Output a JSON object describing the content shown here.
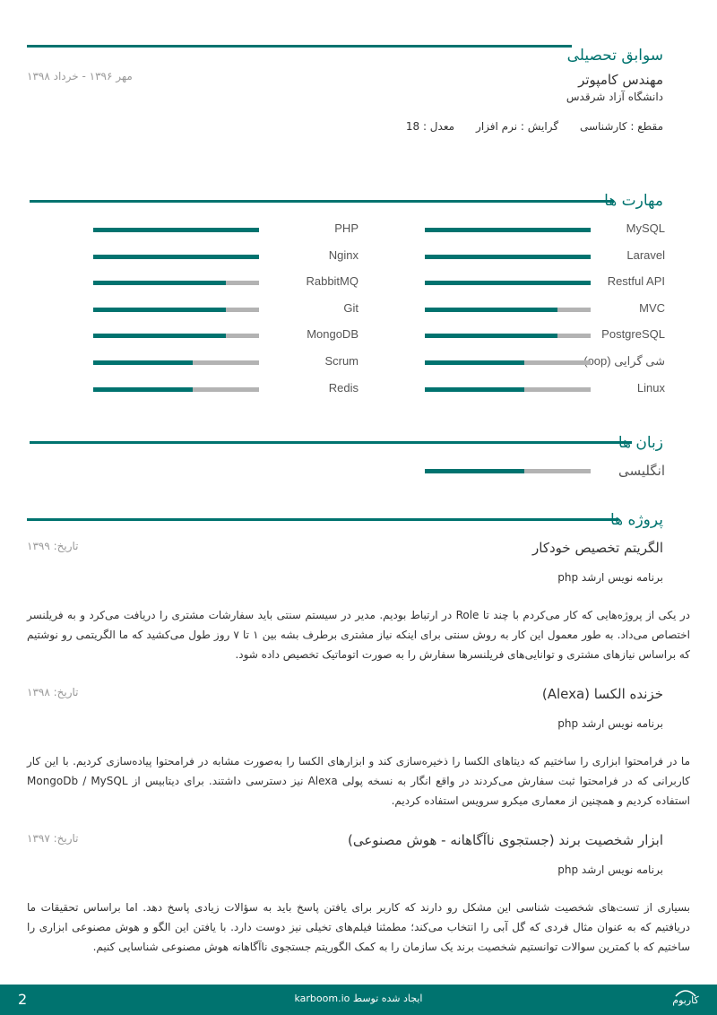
{
  "education": {
    "title": "سوابق تحصیلی",
    "degree_title": "مهندس کامپوتر",
    "university": "دانشگاه آزاد شرقدس",
    "date": "مهر ۱۳۹۶ - خرداد ۱۳۹۸",
    "level": "مقطع : کارشناسی",
    "major": "گرایش : نرم افزار",
    "gpa": "معدل : 18"
  },
  "skills": {
    "title": "مهارت ها",
    "right": [
      {
        "name": "MySQL",
        "level": 100
      },
      {
        "name": "Laravel",
        "level": 100
      },
      {
        "name": "Restful API",
        "level": 100
      },
      {
        "name": "MVC",
        "level": 80
      },
      {
        "name": "PostgreSQL",
        "level": 80
      },
      {
        "name": "شی گرایی (oop)",
        "level": 60
      },
      {
        "name": "Linux",
        "level": 60
      }
    ],
    "left": [
      {
        "name": "PHP",
        "level": 100
      },
      {
        "name": "Nginx",
        "level": 100
      },
      {
        "name": "RabbitMQ",
        "level": 80
      },
      {
        "name": "Git",
        "level": 80
      },
      {
        "name": "MongoDB",
        "level": 80
      },
      {
        "name": "Scrum",
        "level": 60
      },
      {
        "name": "Redis",
        "level": 60
      }
    ]
  },
  "languages": {
    "title": "زبان ها",
    "items": [
      {
        "name": "انگلیسی",
        "level": 60
      }
    ]
  },
  "projects": {
    "title": "پروژه ها",
    "items": [
      {
        "title": "الگریتم تخصیص خودکار",
        "date": "تاریخ: ۱۳۹۹",
        "role": "برنامه نویس ارشد php",
        "desc": "در یکی از پروژه‌هایی که کار می‌کردم با چند تا Role در ارتباط بودیم. مدیر در سیستم سنتی باید سفارشات مشتری را دریافت می‌کرد و به فریلنسر اختصاص می‌داد. به طور معمول این کار به روش سنتی برای اینکه نیاز مشتری برطرف بشه بین ۱ تا ۷ روز طول می‌کشید که ما الگریتمی رو نوشتیم که براساس نیازهای مشتری و توانایی‌های فریلنسرها سفارش را به صورت اتوماتیک تخصیص داده شود."
      },
      {
        "title": "خزنده الکسا (Alexa)",
        "date": "تاریخ: ۱۳۹۸",
        "role": "برنامه نویس ارشد php",
        "desc": "ما در فرامحتوا ابزاری را ساختیم که دیتاهای الکسا را ذخیره‌سازی کند و ابزارهای الکسا را به‌صورت مشابه در فرامحتوا پیاده‌سازی کردیم. با این کار کاربرانی که در فرامحتوا ثبت سفارش می‌کردند در واقع انگار به نسخه پولی Alexa نیز دسترسی داشتند. برای دیتابیس از MongoDb / MySQL استفاده کردیم و همچنین از معماری میکرو سرویس استفاده کردیم."
      },
      {
        "title": "ابزار شخصیت برند (جستجوی ناآگاهانه - هوش مصنوعی)",
        "date": "تاریخ: ۱۳۹۷",
        "role": "برنامه نویس ارشد php",
        "desc": "بسیاری از تست‌های شخصیت شناسی این مشکل رو دارند که کاربر برای یافتن پاسخ باید به سؤالات زیادی پاسخ دهد. اما براساس تحقیقات ما دریافتیم که به عنوان مثال فردی که گل آبی را انتخاب می‌کند؛ مطمئنا فیلم‌های تخیلی نیز دوست دارد. با یافتن این الگو و هوش مصنوعی ابزاری را ساختیم که با کمترین سوالات توانستیم شخصیت برند یک سازمان را به کمک الگوریتم جستجوی ناآگاهانه هوش مصنوعی شناسایی کنیم."
      }
    ]
  },
  "footer": {
    "page": "2",
    "credit": "ایجاد شده توسط karboom.io",
    "logo": "کاربوم"
  },
  "colors": {
    "accent": "#00736f",
    "track": "#b3b3b3"
  }
}
